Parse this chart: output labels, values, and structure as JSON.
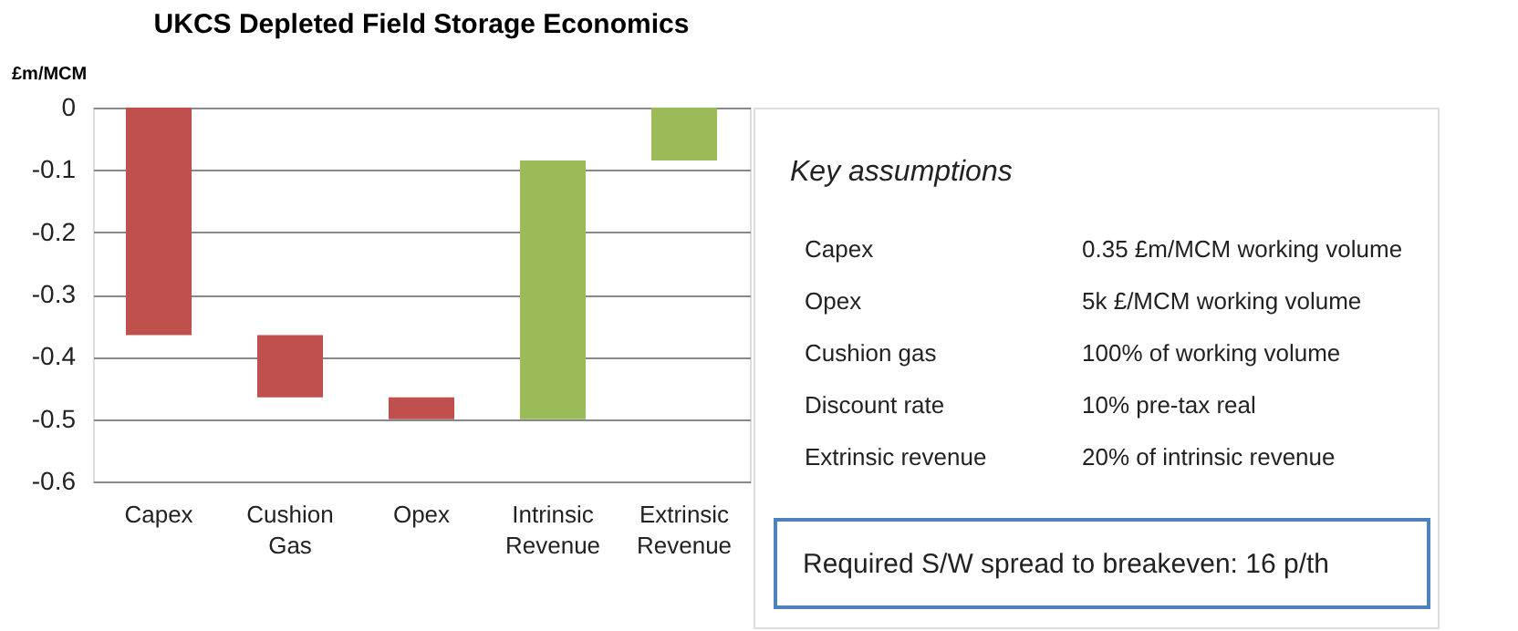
{
  "chart_data": {
    "type": "bar",
    "title": "UKCS Depleted Field Storage Economics",
    "ylabel": "£m/MCM",
    "categories": [
      "Capex",
      "Cushion Gas",
      "Opex",
      "Intrinsic Revenue",
      "Extrinsic Revenue"
    ],
    "base": [
      0,
      -0.365,
      -0.465,
      -0.5,
      -0.085
    ],
    "values": [
      -0.365,
      -0.1,
      -0.035,
      0.415,
      0.085
    ],
    "colors": [
      "#c0504d",
      "#c0504d",
      "#c0504d",
      "#9bbb59",
      "#9bbb59"
    ],
    "ylim": [
      -0.6,
      0
    ],
    "yticks": [
      0,
      -0.1,
      -0.2,
      -0.3,
      -0.4,
      -0.5,
      -0.6
    ],
    "grid": "y",
    "annotations": [
      "Key assumptions",
      "Capex",
      "0.35 £m/MCM working volume",
      "Opex",
      "5k £/MCM working volume",
      "Cushion gas",
      "100% of working volume",
      "Discount rate",
      "10% pre-tax real",
      "Extrinsic revenue",
      "20% of intrinsic revenue",
      "Required S/W spread to breakeven: 16 p/th"
    ]
  }
}
